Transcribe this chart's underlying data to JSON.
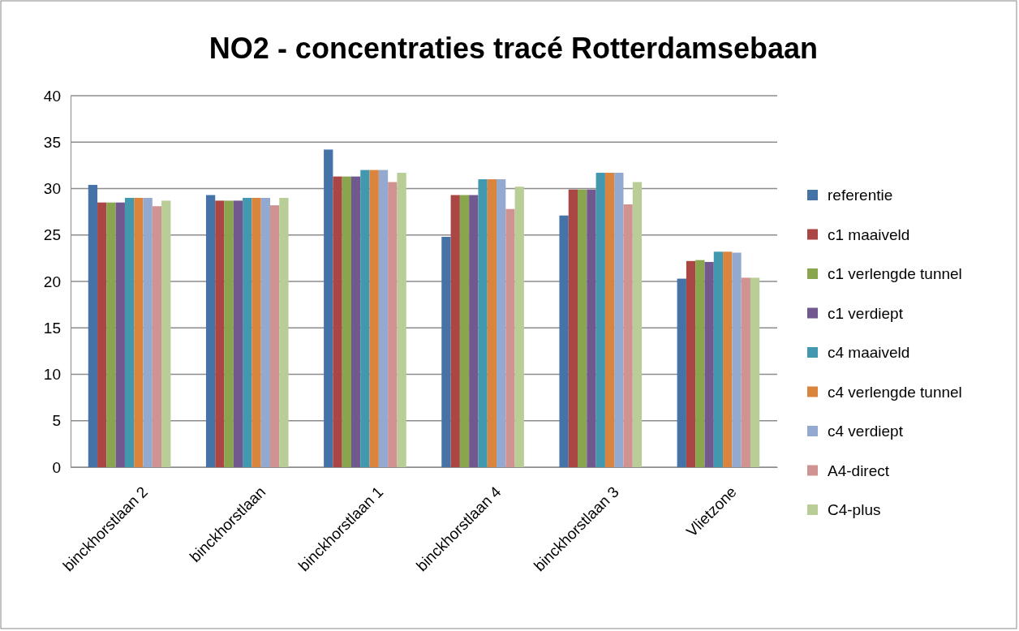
{
  "chart_data": {
    "type": "bar",
    "title": "NO2 - concentraties tracé Rotterdamsebaan",
    "categories": [
      "binckhorstlaan 2",
      "binckhorstlaan",
      "binckhorstlaan 1",
      "binckhorstlaan 4",
      "binckhorstlaan 3",
      "Vlietzone"
    ],
    "series": [
      {
        "name": "referentie",
        "color": "#4572a7",
        "values": [
          30.4,
          29.3,
          34.2,
          24.8,
          27.1,
          20.3
        ]
      },
      {
        "name": "c1 maaiveld",
        "color": "#aa4643",
        "values": [
          28.5,
          28.7,
          31.3,
          29.3,
          29.9,
          22.2
        ]
      },
      {
        "name": "c1 verlengde tunnel",
        "color": "#89a54e",
        "values": [
          28.5,
          28.7,
          31.3,
          29.3,
          29.9,
          22.3
        ]
      },
      {
        "name": "c1 verdiept",
        "color": "#71588f",
        "values": [
          28.5,
          28.7,
          31.3,
          29.3,
          29.9,
          22.1
        ]
      },
      {
        "name": "c4 maaiveld",
        "color": "#4198af",
        "values": [
          29.0,
          29.0,
          32.0,
          31.0,
          31.7,
          23.2
        ]
      },
      {
        "name": "c4 verlengde tunnel",
        "color": "#db843d",
        "values": [
          29.0,
          29.0,
          32.0,
          31.0,
          31.7,
          23.2
        ]
      },
      {
        "name": "c4 verdiept",
        "color": "#93a9cf",
        "values": [
          29.0,
          29.0,
          32.0,
          31.0,
          31.7,
          23.1
        ]
      },
      {
        "name": "A4-direct",
        "color": "#d19392",
        "values": [
          28.1,
          28.2,
          30.7,
          27.8,
          28.3,
          20.4
        ]
      },
      {
        "name": "C4-plus",
        "color": "#b9cd96",
        "values": [
          28.7,
          29.0,
          31.7,
          30.2,
          30.7,
          20.4
        ]
      }
    ],
    "ylim": [
      0,
      40
    ],
    "yticks": [
      0,
      5,
      10,
      15,
      20,
      25,
      30,
      35,
      40
    ],
    "grid": "y",
    "legend": "right"
  }
}
